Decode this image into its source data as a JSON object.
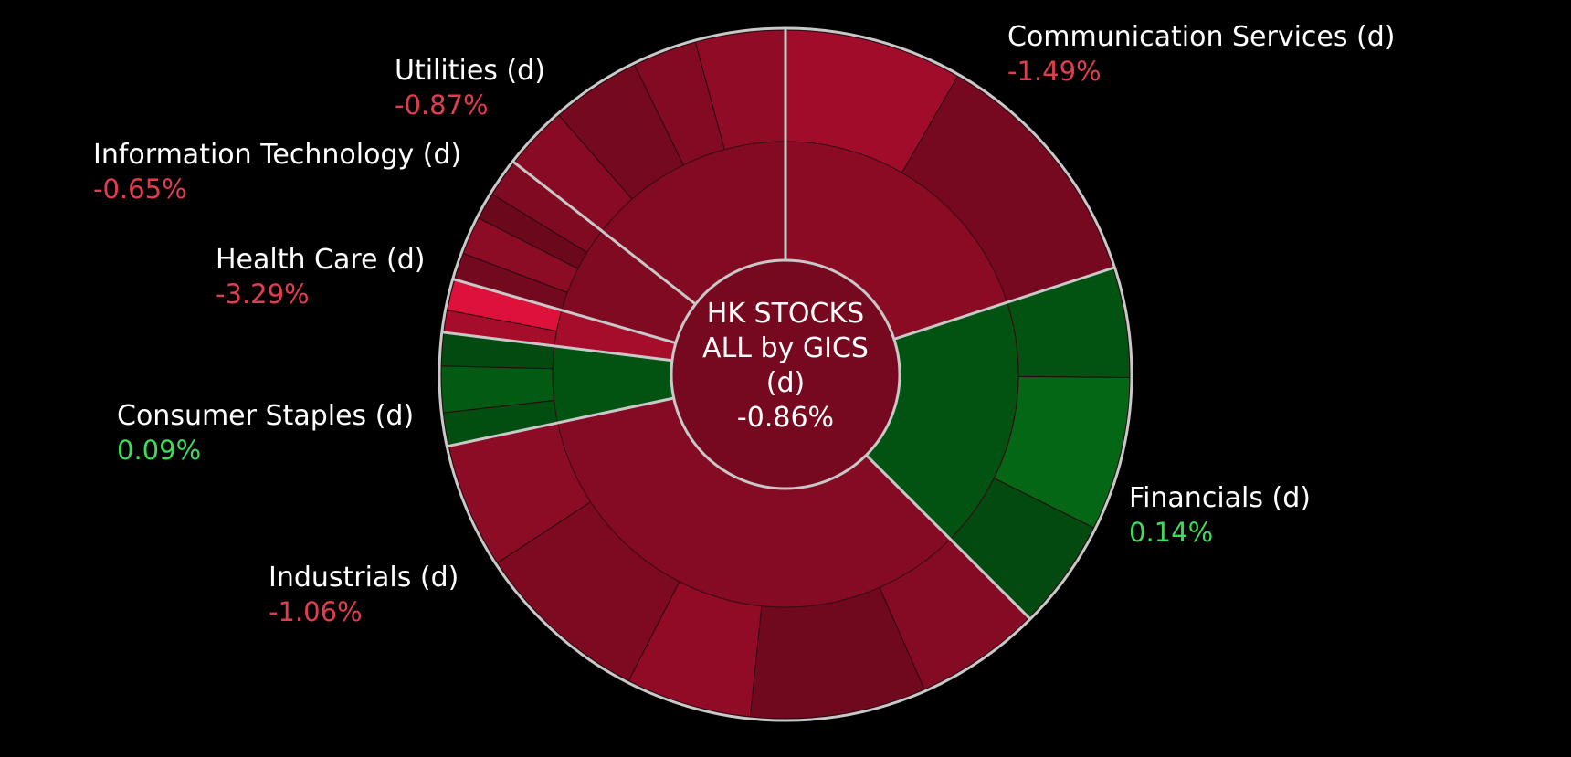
{
  "colors": {
    "negative_text": "#e23d4f",
    "positive_text": "#3ddc5c",
    "negative_fill": "#76091f",
    "positive_fill": "#025211",
    "separator": "#c8c8c8",
    "background": "#000000"
  },
  "center": {
    "title": "HK STOCKS\nALL by GICS\n(d)",
    "change": "-0.86%"
  },
  "chart_data": {
    "type": "sunburst",
    "total": {
      "label": "HK STOCKS ALL by GICS (d)",
      "change_pct": -0.86
    },
    "sectors": [
      {
        "name": "Communication Services (d)",
        "change_text": "-1.49%",
        "change_pct": -1.49,
        "weight": 72
      },
      {
        "name": "Financials (d)",
        "change_text": "0.14%",
        "change_pct": 0.14,
        "weight": 63
      },
      {
        "name": "Industrials (d)",
        "change_text": "-1.06%",
        "change_pct": -1.06,
        "weight": 123
      },
      {
        "name": "Consumer Staples (d)",
        "change_text": "0.09%",
        "change_pct": 0.09,
        "weight": 19
      },
      {
        "name": "Health Care (d)",
        "change_text": "-3.29%",
        "change_pct": -3.29,
        "weight": 9
      },
      {
        "name": "Information Technology (d)",
        "change_text": "-0.65%",
        "change_pct": -0.65,
        "weight": 22
      },
      {
        "name": "Utilities (d)",
        "change_text": "-0.87%",
        "change_pct": -0.87,
        "weight": 52
      }
    ]
  }
}
